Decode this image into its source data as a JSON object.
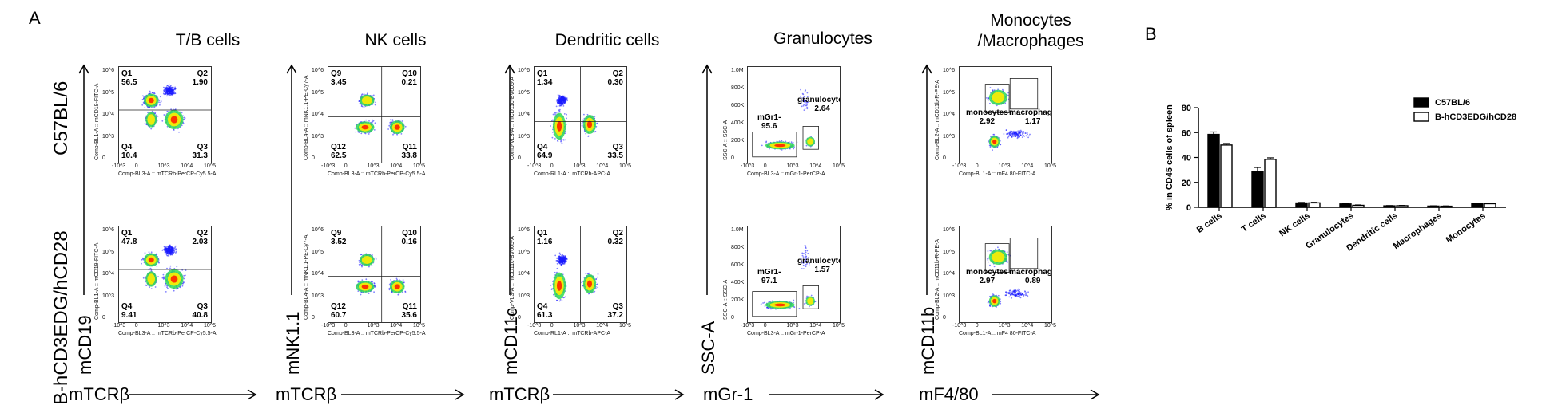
{
  "panel_a_label": "A",
  "panel_b_label": "B",
  "row_labels": [
    "C57BL/6",
    "B-hCD3EDG/hCD28"
  ],
  "columns": [
    {
      "title": "T/B cells",
      "y_marker": "mCD19",
      "x_marker": "mTCRβ",
      "ylab": "Comp-BL1-A :: mCD19-FITC-A",
      "xlab": "Comp-BL3-A :: mTCRb-PerCP-Cy5.5-A"
    },
    {
      "title": "NK cells",
      "y_marker": "mNK1.1",
      "x_marker": "mTCRβ",
      "ylab": "Comp-BL4-A :: mNK1.1-PE-Cy7-A",
      "xlab": "Comp-BL3-A :: mTCRb-PerCP-Cy5.5-A"
    },
    {
      "title": "Dendritic cells",
      "y_marker": "mCD11c",
      "x_marker": "mTCRβ",
      "ylab": "Comp-VL3-A :: mCD11c-BV605-A",
      "xlab": "Comp-RL1-A :: mTCRb-APC-A"
    },
    {
      "title": "Granulocytes",
      "y_marker": "SSC-A",
      "x_marker": "mGr-1",
      "ylab": "SSC-A :: SSC-A",
      "xlab": "Comp-BL3-A :: mGr-1-PerCP-A"
    },
    {
      "title": "Monocytes\n/Macrophages",
      "y_marker": "mCD11b",
      "x_marker": "mF4/80",
      "ylab": "Comp-BL2-A :: mCD11b-R-PE-A",
      "xlab": "Comp-BL1-A :: mF4 80-FITC-A"
    }
  ],
  "quadrant_plots": [
    [
      {
        "q1": [
          "Q1",
          "56.5"
        ],
        "q2": [
          "Q2",
          "1.90"
        ],
        "q3": [
          "Q3",
          "31.3"
        ],
        "q4": [
          "Q4",
          "10.4"
        ]
      },
      {
        "q1": [
          "Q9",
          "3.45"
        ],
        "q2": [
          "Q10",
          "0.21"
        ],
        "q3": [
          "Q11",
          "33.8"
        ],
        "q4": [
          "Q12",
          "62.5"
        ]
      },
      {
        "q1": [
          "Q1",
          "1.34"
        ],
        "q2": [
          "Q2",
          "0.30"
        ],
        "q3": [
          "Q3",
          "33.5"
        ],
        "q4": [
          "Q4",
          "64.9"
        ]
      }
    ],
    [
      {
        "q1": [
          "Q1",
          "47.8"
        ],
        "q2": [
          "Q2",
          "2.03"
        ],
        "q3": [
          "Q3",
          "40.8"
        ],
        "q4": [
          "Q4",
          "9.41"
        ]
      },
      {
        "q1": [
          "Q9",
          "3.52"
        ],
        "q2": [
          "Q10",
          "0.16"
        ],
        "q3": [
          "Q11",
          "35.6"
        ],
        "q4": [
          "Q12",
          "60.7"
        ]
      },
      {
        "q1": [
          "Q1",
          "1.16"
        ],
        "q2": [
          "Q2",
          "0.32"
        ],
        "q3": [
          "Q3",
          "37.2"
        ],
        "q4": [
          "Q4",
          "61.3"
        ]
      }
    ]
  ],
  "gate_plots": [
    [
      {
        "g1": [
          "mGr1-",
          "95.6"
        ],
        "g2": [
          "granulocytes",
          "2.64"
        ]
      },
      {
        "g1": [
          "monocytes",
          "2.92"
        ],
        "g2": [
          "macrophage",
          "1.17"
        ]
      }
    ],
    [
      {
        "g1": [
          "mGr1-",
          "97.1"
        ],
        "g2": [
          "granulocytes",
          "1.57"
        ]
      },
      {
        "g1": [
          "monocytes",
          "2.97"
        ],
        "g2": [
          "macrophage",
          "0.89"
        ]
      }
    ]
  ],
  "log_ticks_y": [
    "10^6",
    "10^5",
    "10^4",
    "10^3",
    "0"
  ],
  "log_ticks_x": [
    "-10^3",
    "0",
    "10^3",
    "10^4",
    "10^5"
  ],
  "ssc_ticks": [
    "1.0M",
    "800K",
    "600K",
    "400K",
    "200K",
    "0"
  ],
  "colors": {
    "dot": "#1a1aff",
    "hot": "#ff2a00",
    "mid": "#ffee00",
    "warm": "#33dd55"
  },
  "chart_data": {
    "type": "bar",
    "categories": [
      "B cells",
      "T cells",
      "NK cells",
      "Granulocytes",
      "Dendritic cells",
      "Macrophages",
      "Monocytes"
    ],
    "series": [
      {
        "name": "C57BL/6",
        "values": [
          58.5,
          28.5,
          3.5,
          2.7,
          1.2,
          1.0,
          2.8
        ],
        "errors": [
          2.0,
          3.5,
          0.4,
          0.4,
          0.2,
          0.2,
          0.3
        ],
        "color": "#000000"
      },
      {
        "name": "B-hCD3EDG/hCD28",
        "values": [
          50.0,
          38.5,
          3.6,
          1.6,
          1.3,
          0.9,
          2.9
        ],
        "errors": [
          1.2,
          1.2,
          0.4,
          0.3,
          0.2,
          0.2,
          0.3
        ],
        "color": "#ffffff"
      }
    ],
    "ylabel": "% in CD45 cells of spleen",
    "ylim": [
      0,
      80
    ],
    "yticks": [
      "0",
      "20",
      "40",
      "60",
      "80"
    ],
    "legend_position": "top-right"
  }
}
